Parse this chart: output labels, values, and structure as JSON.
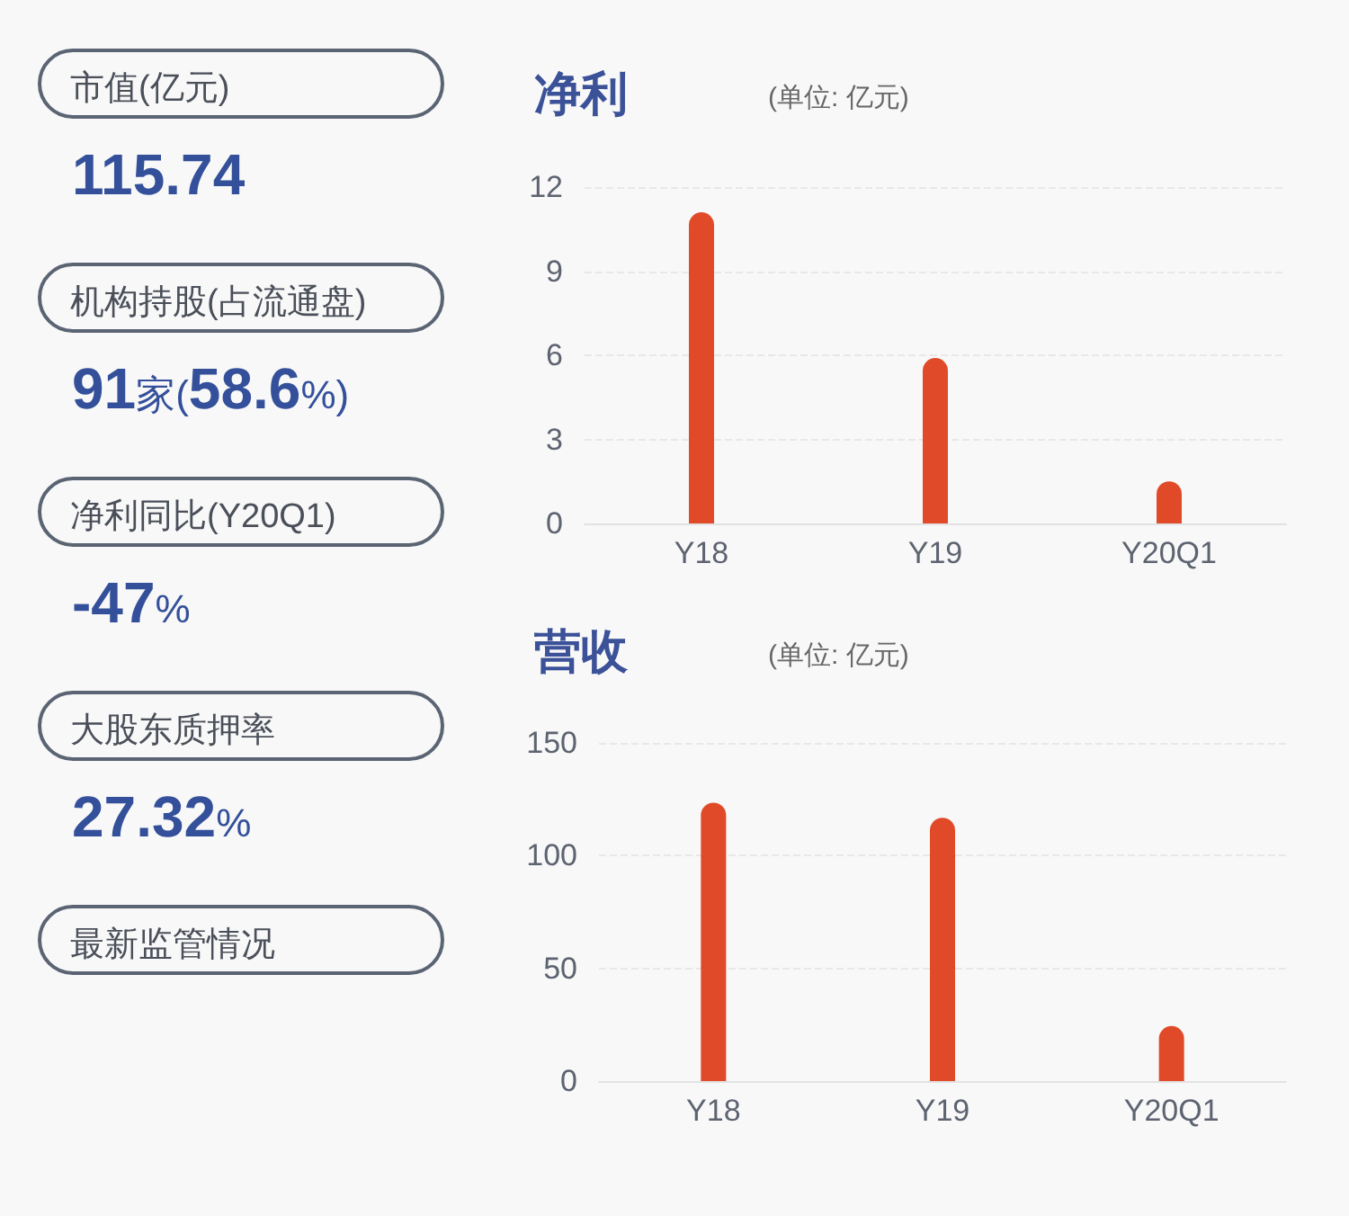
{
  "chart_data": [
    {
      "type": "other",
      "categories": [
        "市值(亿元)",
        "机构持股(占流通盘)",
        "净利同比(Y20Q1)",
        "大股东质押率",
        "最新监管情况"
      ],
      "annotations": [
        "115.74",
        "91家(58.6%)",
        "-47%",
        "27.32%"
      ]
    },
    {
      "type": "bar",
      "title": "净利",
      "subtitle": "(单位: 亿元)",
      "categories": [
        "Y18",
        "Y19",
        "Y20Q1"
      ],
      "values": [
        11.1,
        5.9,
        1.5
      ],
      "color": "#e04a28",
      "ylim": [
        0,
        12
      ],
      "yticks": [
        0,
        3,
        6,
        9,
        12
      ],
      "grid": "y"
    },
    {
      "type": "bar",
      "title": "营收",
      "subtitle": "(单位: 亿元)",
      "categories": [
        "Y18",
        "Y19",
        "Y20Q1"
      ],
      "values": [
        123.5,
        116.8,
        24.4
      ],
      "color": "#e04a28",
      "ylim": [
        0,
        150
      ],
      "yticks": [
        0,
        50,
        100,
        150
      ],
      "grid": "y"
    }
  ]
}
